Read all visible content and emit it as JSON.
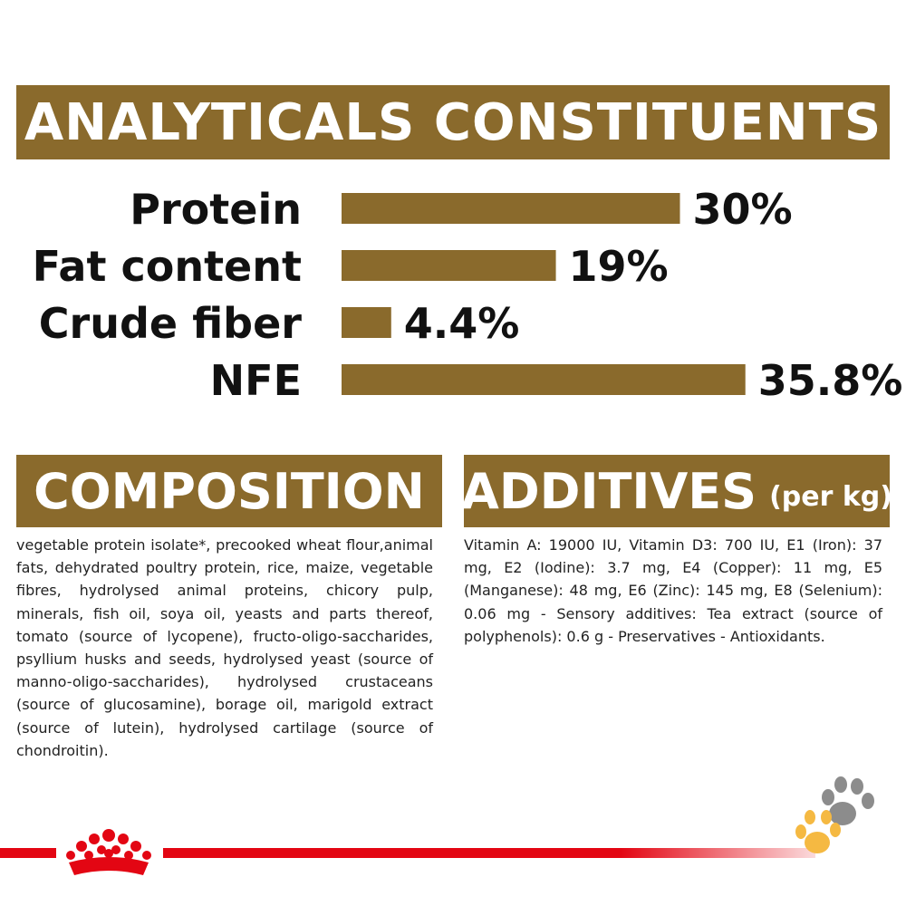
{
  "banners": {
    "analyticals": "ANALYTICALS CONSTITUENTS",
    "composition": "COMPOSITION",
    "additives": "ADDITIVES",
    "additives_unit": "(per kg)"
  },
  "chart_data": {
    "type": "bar",
    "categories": [
      "Protein",
      "Fat content",
      "Crude fiber",
      "NFE"
    ],
    "values": [
      30,
      19,
      4.4,
      35.8
    ],
    "value_labels": [
      "30%",
      "19%",
      "4.4%",
      "35.8%"
    ],
    "title": "ANALYTICALS CONSTITUENTS",
    "orientation": "horizontal",
    "bar_color": "#8a6a2c",
    "grid": false
  },
  "composition_text": "vegetable protein isolate*, precooked wheat flour,animal fats, dehydrated poultry protein, rice, maize, vegetable fibres, hydrolysed animal proteins, chicory pulp, minerals, fish oil, soya oil, yeasts and parts thereof, tomato (source of lycopene), fructo-oligo-saccharides, psyllium husks and seeds, hydrolysed yeast (source of manno-oligo-saccharides), hydrolysed crustaceans (source of glucosamine), borage oil, marigold extract (source of lutein), hydrolysed cartilage (source of chondroitin).",
  "additives_text": "Vitamin A: 19000 IU, Vitamin D3: 700 IU, E1 (Iron): 37 mg, E2 (Iodine): 3.7 mg, E4 (Copper): 11 mg, E5 (Manganese): 48 mg, E6 (Zinc): 145 mg, E8 (Selenium): 0.06 mg - Sensory additives: Tea extract (source of polyphenols): 0.6 g - Preservatives - Antioxidants.",
  "colors": {
    "brand_brown": "#8a6a2c",
    "royal_red": "#e30613",
    "paw_gray": "#8c8c8c",
    "paw_orange": "#f5b942"
  },
  "icons": {
    "logo": "royal-canin-crown-icon",
    "decoration": "paw-prints-icon"
  }
}
